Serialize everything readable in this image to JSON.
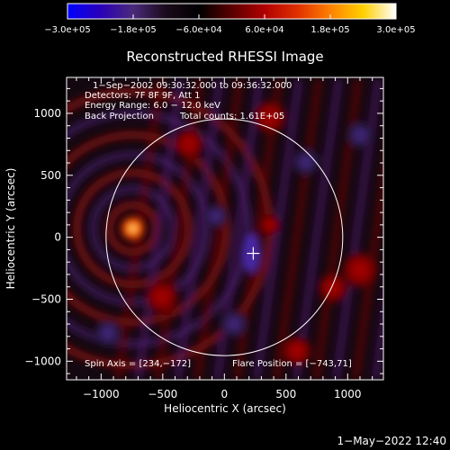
{
  "chart_data": {
    "type": "heatmap",
    "title": "Reconstructed RHESSI Image",
    "xlabel": "Heliocentric X (arcsec)",
    "ylabel": "Heliocentric Y (arcsec)",
    "xlim": [
      -1280,
      1290
    ],
    "ylim": [
      -1150,
      1290
    ],
    "xticks": [
      -1000,
      -500,
      0,
      500,
      1000
    ],
    "yticks": [
      -1000,
      -500,
      0,
      500,
      1000
    ],
    "xtick_labels": [
      "−1000",
      "−500",
      "0",
      "500",
      "1000"
    ],
    "ytick_labels": [
      "−1000",
      "−500",
      "0",
      "500",
      "1000"
    ],
    "colorbar": {
      "min": -300000,
      "max": 300000,
      "tick_labels": [
        "−3.0e+05",
        "−1.8e+05",
        "−6.0e+04",
        "6.0e+04",
        "1.8e+05",
        "3.0e+05"
      ],
      "colors": [
        "#0000ff",
        "#2a00b8",
        "#4a2a7a",
        "#1a0a1a",
        "#000000",
        "#5a0000",
        "#b00000",
        "#e03000",
        "#ff8000",
        "#ffd000",
        "#ffffff"
      ]
    },
    "annotations": [
      "1−Sep−2002 09:30:32.000 to 09:36:32.000",
      "Detectors: 7F 8F 9F, Att 1",
      "Energy Range: 6.0 − 12.0 keV",
      "Back Projection",
      "Total counts: 1.61E+05"
    ],
    "spin_axis_label": "Spin Axis = [234,−172]",
    "flare_position_label": "Flare Position = [−743,71]",
    "spin_axis": [
      234,
      -172
    ],
    "flare_position": [
      -743,
      71
    ],
    "plus_marker": [
      234,
      -130
    ],
    "solar_disk": {
      "center": [
        0,
        0
      ],
      "radius": 960
    }
  },
  "footer": {
    "timestamp": "1−May−2022 12:40"
  }
}
